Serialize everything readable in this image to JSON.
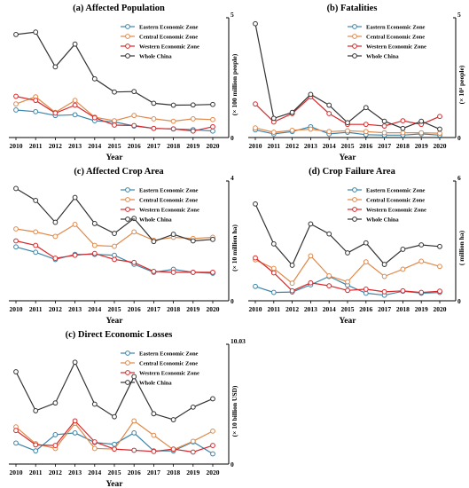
{
  "colors": {
    "eastern": "#3c84a8",
    "central": "#e0894a",
    "western": "#d7282a",
    "whole": "#333333"
  },
  "chart_data": [
    {
      "id": "p1",
      "type": "line",
      "title": "(a) Affected Population",
      "xlabel": "Year",
      "ylabel": "(× 100 million people)",
      "ymax_label": "5",
      "y_right": true,
      "ylim": [
        0,
        5
      ],
      "x": [
        "2010",
        "2011",
        "2012",
        "2013",
        "2014",
        "2015",
        "2016",
        "2017",
        "2018",
        "2019",
        "2020"
      ],
      "series": [
        {
          "name": "Eastern Economic Zone",
          "key": "eastern",
          "values": [
            1.15,
            1.08,
            0.92,
            0.95,
            0.7,
            0.65,
            0.48,
            0.38,
            0.36,
            0.33,
            0.27
          ]
        },
        {
          "name": "Central Economic Zone",
          "key": "central",
          "values": [
            1.4,
            1.7,
            1.05,
            1.55,
            0.85,
            0.7,
            0.92,
            0.78,
            0.68,
            0.78,
            0.75
          ]
        },
        {
          "name": "Western Economic Zone",
          "key": "western",
          "values": [
            1.72,
            1.55,
            1.02,
            1.35,
            0.83,
            0.52,
            0.5,
            0.38,
            0.36,
            0.27,
            0.45
          ]
        },
        {
          "name": "Whole China",
          "key": "whole",
          "values": [
            4.3,
            4.4,
            2.95,
            3.9,
            2.45,
            1.9,
            1.92,
            1.43,
            1.35,
            1.36,
            1.38
          ]
        }
      ]
    },
    {
      "id": "p2",
      "type": "line",
      "title": "(b) Fatalities",
      "xlabel": "Year",
      "ylabel": "(× 10³ people)",
      "ymax_label": "5",
      "y_right": true,
      "ylim": [
        0,
        5
      ],
      "x": [
        "2010",
        "2011",
        "2012",
        "2013",
        "2014",
        "2015",
        "2016",
        "2017",
        "2018",
        "2019",
        "2020"
      ],
      "series": [
        {
          "name": "Eastern Economic Zone",
          "key": "eastern",
          "values": [
            0.32,
            0.15,
            0.25,
            0.45,
            0.15,
            0.22,
            0.12,
            0.1,
            0.1,
            0.15,
            0.1
          ]
        },
        {
          "name": "Central Economic Zone",
          "key": "central",
          "values": [
            0.4,
            0.22,
            0.3,
            0.35,
            0.25,
            0.28,
            0.25,
            0.2,
            0.2,
            0.2,
            0.18
          ]
        },
        {
          "name": "Western Economic Zone",
          "key": "western",
          "values": [
            1.4,
            0.65,
            1.0,
            1.7,
            1.0,
            0.55,
            0.55,
            0.48,
            0.7,
            0.55,
            0.88
          ]
        },
        {
          "name": "Whole China",
          "key": "whole",
          "values": [
            4.75,
            0.8,
            1.05,
            1.8,
            1.35,
            0.62,
            1.25,
            0.68,
            0.38,
            0.68,
            0.35
          ]
        }
      ]
    },
    {
      "id": "p3",
      "type": "line",
      "title": "(c) Affected Crop Area",
      "xlabel": "Year",
      "ylabel": "(× 10 million ha)",
      "ymax_label": "4",
      "y_right": true,
      "ylim": [
        0,
        4
      ],
      "x": [
        "2010",
        "2011",
        "2012",
        "2013",
        "2014",
        "2015",
        "2016",
        "2017",
        "2018",
        "2019",
        "2020"
      ],
      "series": [
        {
          "name": "Eastern Economic Zone",
          "key": "eastern",
          "values": [
            1.8,
            1.62,
            1.38,
            1.55,
            1.55,
            1.52,
            1.22,
            0.95,
            1.05,
            0.95,
            0.92
          ]
        },
        {
          "name": "Central Economic Zone",
          "key": "central",
          "values": [
            2.4,
            2.3,
            2.15,
            2.55,
            1.85,
            1.82,
            2.3,
            2.02,
            2.12,
            2.08,
            2.12
          ]
        },
        {
          "name": "Western Economic Zone",
          "key": "western",
          "values": [
            2.0,
            1.85,
            1.42,
            1.52,
            1.58,
            1.38,
            1.28,
            0.98,
            0.95,
            0.95,
            0.95
          ]
        },
        {
          "name": "Whole China",
          "key": "whole",
          "values": [
            3.75,
            3.35,
            2.62,
            3.45,
            2.58,
            2.25,
            2.75,
            1.98,
            2.22,
            2.0,
            2.05
          ]
        }
      ]
    },
    {
      "id": "p4",
      "type": "line",
      "title": "(d) Crop Failure Area",
      "xlabel": "Year",
      "ylabel": "( million ha)",
      "ymax_label": "6",
      "y_right": true,
      "ylim": [
        0,
        6
      ],
      "x": [
        "2010",
        "2011",
        "2012",
        "2013",
        "2014",
        "2015",
        "2016",
        "2017",
        "2018",
        "2019",
        "2020"
      ],
      "series": [
        {
          "name": "Eastern Economic Zone",
          "key": "eastern",
          "values": [
            0.72,
            0.42,
            0.44,
            0.8,
            1.22,
            0.78,
            0.38,
            0.28,
            0.48,
            0.38,
            0.42
          ]
        },
        {
          "name": "Central Economic Zone",
          "key": "central",
          "values": [
            2.05,
            1.62,
            0.88,
            2.25,
            1.25,
            0.95,
            1.95,
            1.22,
            1.58,
            1.98,
            1.72
          ]
        },
        {
          "name": "Western Economic Zone",
          "key": "western",
          "values": [
            2.15,
            1.4,
            0.5,
            0.9,
            0.75,
            0.52,
            0.58,
            0.45,
            0.5,
            0.42,
            0.48
          ]
        },
        {
          "name": "Whole China",
          "key": "whole",
          "values": [
            4.85,
            2.85,
            1.78,
            3.85,
            3.35,
            2.4,
            2.9,
            1.82,
            2.58,
            2.8,
            2.72
          ]
        }
      ]
    },
    {
      "id": "p5",
      "type": "line",
      "title": "(c) Direct Economic Losses",
      "xlabel": "Year",
      "ylabel": "(× 10 billion USD)",
      "ymax_label": "10.03",
      "y_right": true,
      "ylim": [
        0,
        10
      ],
      "x": [
        "2010",
        "2011",
        "2012",
        "2013",
        "2014",
        "2015",
        "2016",
        "2017",
        "2018",
        "2019",
        "2020"
      ],
      "series": [
        {
          "name": "Eastern Economic Zone",
          "key": "eastern",
          "values": [
            1.75,
            1.1,
            2.45,
            2.6,
            1.8,
            1.65,
            2.6,
            1.1,
            1.1,
            1.85,
            0.85
          ]
        },
        {
          "name": "Central Economic Zone",
          "key": "central",
          "values": [
            3.1,
            1.7,
            1.3,
            3.4,
            1.3,
            1.25,
            3.6,
            2.4,
            1.2,
            1.9,
            2.75
          ]
        },
        {
          "name": "Western Economic Zone",
          "key": "western",
          "values": [
            2.8,
            1.6,
            1.55,
            3.6,
            1.85,
            1.25,
            1.15,
            1.05,
            1.25,
            1.0,
            1.55
          ]
        },
        {
          "name": "Whole China",
          "key": "whole",
          "values": [
            7.7,
            4.45,
            5.1,
            8.5,
            5.0,
            3.95,
            7.3,
            4.2,
            3.7,
            4.75,
            5.45
          ]
        }
      ]
    }
  ]
}
